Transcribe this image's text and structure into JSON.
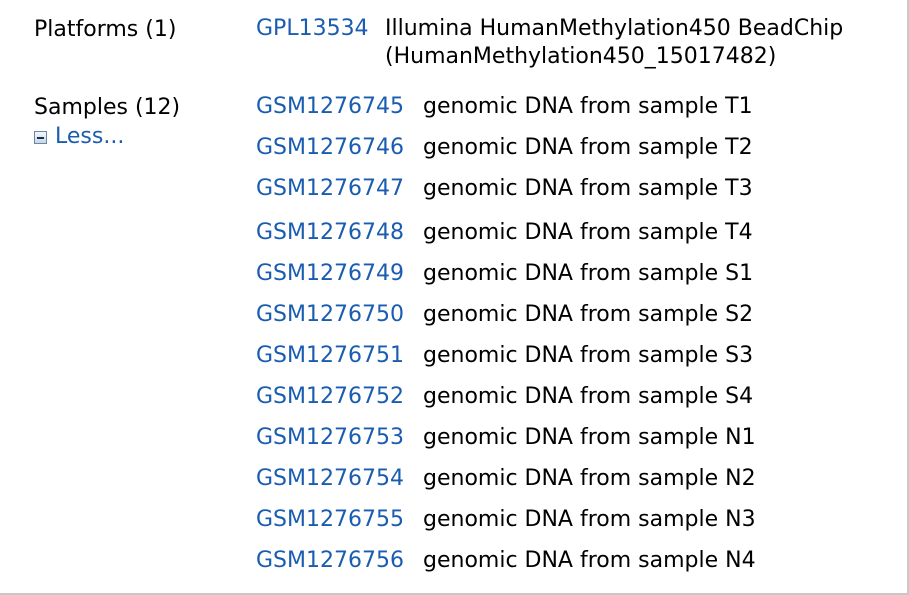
{
  "platforms": {
    "label": "Platforms (1)",
    "accession": "GPL13534",
    "title_line1": "Illumina HumanMethylation450 BeadChip",
    "title_line2": "(HumanMethylation450_15017482)"
  },
  "samples": {
    "label": "Samples (12)",
    "toggle_label": "Less...",
    "toggle_icon": "collapse-minus-icon",
    "link_color": "#1a5cb0",
    "items": [
      {
        "accession": "GSM1276745",
        "title": "genomic DNA from sample T1"
      },
      {
        "accession": "GSM1276746",
        "title": "genomic DNA from sample T2"
      },
      {
        "accession": "GSM1276747",
        "title": "genomic DNA from sample T3"
      },
      {
        "accession": "GSM1276748",
        "title": "genomic DNA from sample T4"
      },
      {
        "accession": "GSM1276749",
        "title": "genomic DNA from sample S1"
      },
      {
        "accession": "GSM1276750",
        "title": "genomic DNA from sample S2"
      },
      {
        "accession": "GSM1276751",
        "title": "genomic DNA from sample S3"
      },
      {
        "accession": "GSM1276752",
        "title": "genomic DNA from sample S4"
      },
      {
        "accession": "GSM1276753",
        "title": "genomic DNA from sample N1"
      },
      {
        "accession": "GSM1276754",
        "title": "genomic DNA from sample N2"
      },
      {
        "accession": "GSM1276755",
        "title": "genomic DNA from sample N3"
      },
      {
        "accession": "GSM1276756",
        "title": "genomic DNA from sample N4"
      }
    ]
  }
}
